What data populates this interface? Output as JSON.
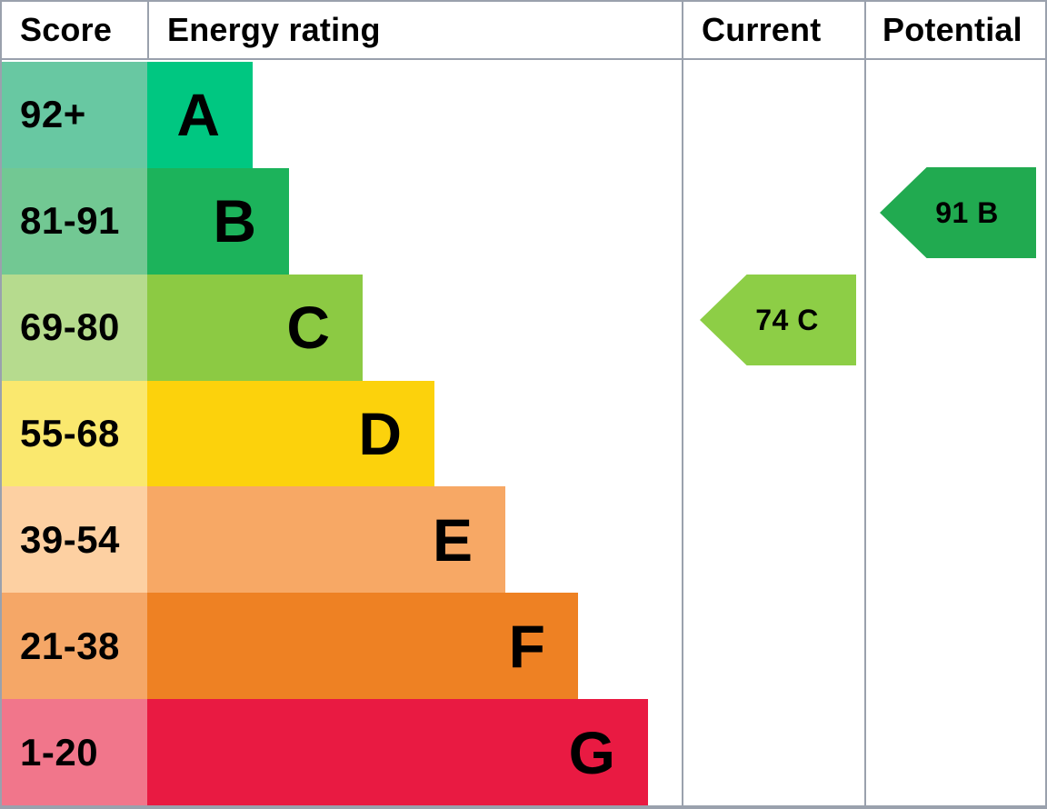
{
  "chart_data": {
    "type": "bar",
    "title": "Energy rating",
    "columns": [
      "Score",
      "Energy rating",
      "Current",
      "Potential"
    ],
    "bands": [
      {
        "rating": "A",
        "score_range": "92+"
      },
      {
        "rating": "B",
        "score_range": "81-91"
      },
      {
        "rating": "C",
        "score_range": "69-80"
      },
      {
        "rating": "D",
        "score_range": "55-68"
      },
      {
        "rating": "E",
        "score_range": "39-54"
      },
      {
        "rating": "F",
        "score_range": "21-38"
      },
      {
        "rating": "G",
        "score_range": "1-20"
      }
    ],
    "current": {
      "score": 74,
      "rating": "C"
    },
    "potential": {
      "score": 91,
      "rating": "B"
    },
    "legend_position": "none",
    "grid": false
  },
  "header": {
    "score": "Score",
    "energy_rating": "Energy rating",
    "current": "Current",
    "potential": "Potential"
  },
  "bands": [
    {
      "rating": "A",
      "score_range": "92+",
      "bar_color": "#00c781",
      "score_bg": "#68c8a2"
    },
    {
      "rating": "B",
      "score_range": "81-91",
      "bar_color": "#1cb35b",
      "score_bg": "#72c893"
    },
    {
      "rating": "C",
      "score_range": "69-80",
      "bar_color": "#8cca43",
      "score_bg": "#b6db8e"
    },
    {
      "rating": "D",
      "score_range": "55-68",
      "bar_color": "#fcd20c",
      "score_bg": "#fae86e"
    },
    {
      "rating": "E",
      "score_range": "39-54",
      "bar_color": "#f7a865",
      "score_bg": "#fdd0a2"
    },
    {
      "rating": "F",
      "score_range": "21-38",
      "bar_color": "#ee8123",
      "score_bg": "#f5a767"
    },
    {
      "rating": "G",
      "score_range": "1-20",
      "bar_color": "#e91a42",
      "score_bg": "#f1768b"
    }
  ],
  "current": {
    "label": "74 C",
    "color": "#8dce46"
  },
  "potential": {
    "label": "91 B",
    "color": "#21aa50"
  }
}
